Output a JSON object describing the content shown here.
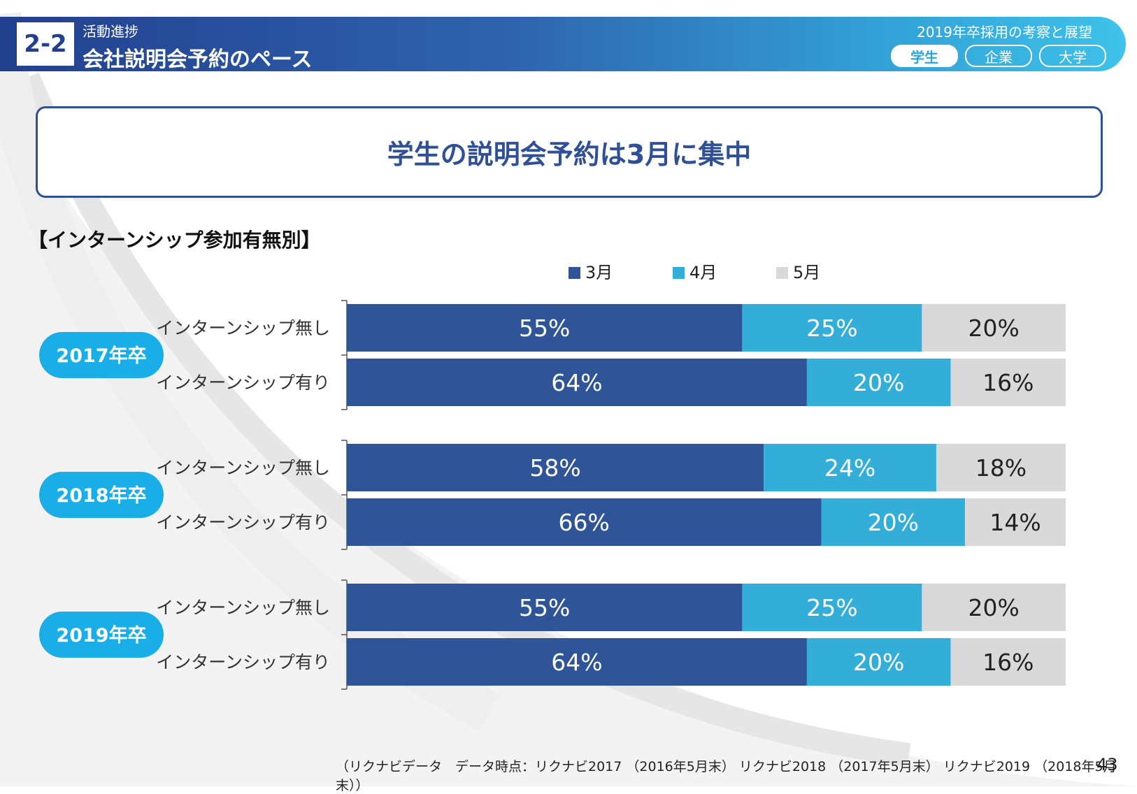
{
  "header": {
    "section_number": "2-2",
    "section_subtitle": "活動進捗",
    "section_title": "会社説明会予約のペース",
    "report_title": "2019年卒採用の考察と展望",
    "tabs": [
      {
        "label": "学生",
        "active": true
      },
      {
        "label": "企業",
        "active": false
      },
      {
        "label": "大学",
        "active": false
      }
    ]
  },
  "headline": "学生の説明会予約は3月に集中",
  "section_label": "【インターンシップ参加有無別】",
  "colors": {
    "march": "#2f5497",
    "april": "#32aed8",
    "may": "#d9d9d9",
    "year_badge": "#1aaee8",
    "header_dark": "#22408e"
  },
  "chart_data": {
    "type": "bar",
    "orientation": "horizontal",
    "stacked": true,
    "normalized": true,
    "legend": [
      "3月",
      "4月",
      "5月"
    ],
    "legend_position": "top",
    "groups": [
      {
        "label": "2017年卒",
        "rows": [
          {
            "label": "インターンシップ無し",
            "values": [
              55,
              25,
              20
            ],
            "labels": [
              "55%",
              "25%",
              "20%"
            ]
          },
          {
            "label": "インターンシップ有り",
            "values": [
              64,
              20,
              16
            ],
            "labels": [
              "64%",
              "20%",
              "16%"
            ]
          }
        ]
      },
      {
        "label": "2018年卒",
        "rows": [
          {
            "label": "インターンシップ無し",
            "values": [
              58,
              24,
              18
            ],
            "labels": [
              "58%",
              "24%",
              "18%"
            ]
          },
          {
            "label": "インターンシップ有り",
            "values": [
              66,
              20,
              14
            ],
            "labels": [
              "66%",
              "20%",
              "14%"
            ]
          }
        ]
      },
      {
        "label": "2019年卒",
        "rows": [
          {
            "label": "インターンシップ無し",
            "values": [
              55,
              25,
              20
            ],
            "labels": [
              "55%",
              "25%",
              "20%"
            ]
          },
          {
            "label": "インターンシップ有り",
            "values": [
              64,
              20,
              16
            ],
            "labels": [
              "64%",
              "20%",
              "16%"
            ]
          }
        ]
      }
    ]
  },
  "footer": {
    "source": "（リクナビデータ　データ時点：リクナビ2017 （2016年5月末） リクナビ2018 （2017年5月末） リクナビ2019 （2018年5月末））",
    "page_number": "43"
  }
}
